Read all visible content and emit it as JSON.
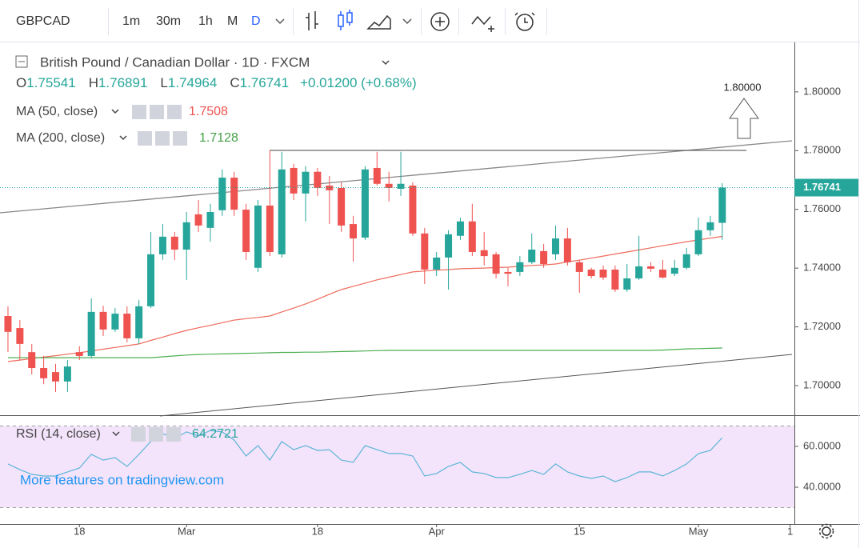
{
  "toolbar": {
    "symbol": "GBPCAD",
    "intervals": [
      "1m",
      "30m",
      "1h",
      "M",
      "D"
    ]
  },
  "legend": {
    "title": "British Pound / Canadian Dollar · 1D · FXCM",
    "ohlc_letters": [
      "O",
      "H",
      "L",
      "C"
    ],
    "change": "+0.01200 (+0.68%)"
  },
  "watermark": "More features on tradingview.com",
  "chart_data": {
    "type": "candlestick",
    "up_color": "#26a69a",
    "down_color": "#ef5350",
    "open": [
      1.7237,
      1.7196,
      1.7114,
      1.706,
      1.7046,
      1.7014,
      1.7114,
      1.7101,
      1.7251,
      1.7191,
      1.7245,
      1.7161,
      1.727,
      1.7447,
      1.7507,
      1.7463,
      1.7583,
      1.7537,
      1.7597,
      1.7708,
      1.7599,
      1.7401,
      1.7613,
      1.7447,
      1.7741,
      1.7654,
      1.7728,
      1.7681,
      1.7673,
      1.755,
      1.7504,
      1.7741,
      1.7687,
      1.767,
      1.7681,
      1.7518,
      1.7395,
      1.7436,
      1.751,
      1.7559,
      1.7461,
      1.7447,
      1.7387,
      1.7387,
      1.742,
      1.7458,
      1.7447,
      1.7501,
      1.742,
      1.7395,
      1.7395,
      1.7395,
      1.7327,
      1.7365,
      1.7406,
      1.7395,
      1.7381,
      1.7401,
      1.7447,
      1.7529,
      1.75541
    ],
    "high": [
      1.727,
      1.7223,
      1.7142,
      1.7101,
      1.7074,
      1.7087,
      1.7134,
      1.7297,
      1.7272,
      1.7264,
      1.727,
      1.7292,
      1.7523,
      1.755,
      1.7523,
      1.7591,
      1.7632,
      1.7619,
      1.7736,
      1.7728,
      1.7619,
      1.7632,
      1.7801,
      1.7796,
      1.7755,
      1.7747,
      1.7741,
      1.7714,
      1.7692,
      1.7578,
      1.7747,
      1.7796,
      1.7728,
      1.7796,
      1.7692,
      1.7537,
      1.7455,
      1.7529,
      1.7572,
      1.7619,
      1.7523,
      1.7455,
      1.7401,
      1.7441,
      1.7518,
      1.7482,
      1.7545,
      1.7537,
      1.7428,
      1.7401,
      1.7409,
      1.7409,
      1.7414,
      1.751,
      1.742,
      1.7428,
      1.7428,
      1.7469,
      1.7572,
      1.7578,
      1.76891
    ],
    "low": [
      1.7114,
      1.7087,
      1.7038,
      1.7005,
      1.6978,
      1.6978,
      1.7087,
      1.7093,
      1.7169,
      1.7183,
      1.7147,
      1.7142,
      1.7264,
      1.7428,
      1.7428,
      1.736,
      1.7523,
      1.749,
      1.7578,
      1.7578,
      1.7428,
      1.7387,
      1.7441,
      1.7436,
      1.7632,
      1.7559,
      1.7646,
      1.755,
      1.7523,
      1.7422,
      1.7496,
      1.7681,
      1.7627,
      1.7646,
      1.751,
      1.7346,
      1.7373,
      1.7327,
      1.7496,
      1.7441,
      1.7409,
      1.7365,
      1.7338,
      1.7373,
      1.7414,
      1.7401,
      1.7428,
      1.7409,
      1.7316,
      1.7365,
      1.736,
      1.7319,
      1.7319,
      1.736,
      1.7387,
      1.7365,
      1.7373,
      1.7395,
      1.7441,
      1.751,
      1.74964
    ],
    "close": [
      1.7183,
      1.7142,
      1.706,
      1.7025,
      1.7014,
      1.7065,
      1.7101,
      1.7251,
      1.7191,
      1.7245,
      1.7161,
      1.727,
      1.7447,
      1.7507,
      1.7463,
      1.7556,
      1.7545,
      1.7591,
      1.7708,
      1.7599,
      1.7455,
      1.7613,
      1.7455,
      1.7736,
      1.7654,
      1.7728,
      1.7673,
      1.7665,
      1.7545,
      1.7501,
      1.7736,
      1.7687,
      1.7673,
      1.7687,
      1.7518,
      1.7395,
      1.7436,
      1.7515,
      1.7559,
      1.7455,
      1.7441,
      1.7381,
      1.7381,
      1.742,
      1.7463,
      1.7414,
      1.7501,
      1.742,
      1.7387,
      1.7373,
      1.7368,
      1.7327,
      1.7365,
      1.7406,
      1.7398,
      1.7368,
      1.7401,
      1.7447,
      1.7529,
      1.7556,
      1.76741
    ],
    "indicators": [
      {
        "name": "MA (50, close)",
        "color": "#ef6b5b",
        "values": [
          1.7082,
          1.7087,
          1.7092,
          1.7097,
          1.7102,
          1.7107,
          1.7112,
          1.7118,
          1.7124,
          1.713,
          1.7136,
          1.7142,
          1.7154,
          1.7165,
          1.7177,
          1.7188,
          1.7197,
          1.7205,
          1.7214,
          1.7223,
          1.7228,
          1.7232,
          1.7237,
          1.7251,
          1.7264,
          1.7278,
          1.7294,
          1.7311,
          1.7327,
          1.7338,
          1.7349,
          1.736,
          1.7369,
          1.7378,
          1.7387,
          1.739,
          1.7393,
          1.7395,
          1.7398,
          1.7399,
          1.74,
          1.7402,
          1.7403,
          1.7406,
          1.7409,
          1.7411,
          1.7414,
          1.7421,
          1.7427,
          1.7434,
          1.7441,
          1.7448,
          1.7455,
          1.7462,
          1.7469,
          1.7476,
          1.7483,
          1.749,
          1.7496,
          1.7502,
          1.7508
        ]
      },
      {
        "name": "MA (200, close)",
        "color": "#4caf50",
        "values": [
          1.7095,
          1.7095,
          1.7095,
          1.7095,
          1.7095,
          1.7095,
          1.7095,
          1.7095,
          1.7095,
          1.7095,
          1.7095,
          1.7095,
          1.7095,
          1.7098,
          1.7101,
          1.7104,
          1.7106,
          1.7107,
          1.7108,
          1.7109,
          1.711,
          1.7111,
          1.7112,
          1.7113,
          1.7113,
          1.7114,
          1.7114,
          1.7115,
          1.7116,
          1.7117,
          1.7118,
          1.7119,
          1.712,
          1.712,
          1.712,
          1.712,
          1.712,
          1.712,
          1.712,
          1.712,
          1.712,
          1.712,
          1.712,
          1.712,
          1.712,
          1.712,
          1.712,
          1.712,
          1.712,
          1.712,
          1.712,
          1.712,
          1.712,
          1.712,
          1.712,
          1.7121,
          1.7123,
          1.7125,
          1.7126,
          1.7127,
          1.7128
        ]
      }
    ],
    "ylim": [
      1.6902,
      1.8163
    ],
    "yticks": [
      {
        "value": 1.8,
        "label": "1.80000"
      },
      {
        "value": 1.78,
        "label": "1.78000"
      },
      {
        "value": 1.76,
        "label": "1.76000"
      },
      {
        "value": 1.74,
        "label": "1.74000"
      },
      {
        "value": 1.72,
        "label": "1.72000"
      },
      {
        "value": 1.7,
        "label": "1.70000"
      }
    ],
    "xlim": [
      -0.67,
      66.06
    ],
    "xticks": [
      {
        "value": 6,
        "label": "18"
      },
      {
        "value": 15,
        "label": "Mar"
      },
      {
        "value": 26,
        "label": "18"
      },
      {
        "value": 36,
        "label": "Apr"
      },
      {
        "value": 48,
        "label": "15"
      },
      {
        "value": 58,
        "label": "May"
      },
      {
        "value": 65.7,
        "label": "1"
      }
    ],
    "annotation": "1.80000",
    "rsi": {
      "name": "RSI (14, close)",
      "color": "#5db5d8",
      "band_color": "#f3e4fb",
      "values": [
        51.4,
        48.6,
        46.3,
        45.5,
        45.5,
        47.5,
        49.4,
        56.1,
        53.3,
        54.5,
        50.2,
        56.1,
        62.4,
        66.3,
        63.9,
        67.1,
        65.1,
        67.8,
        67.1,
        63.1,
        55.3,
        60.4,
        53.3,
        62.4,
        58.4,
        60.4,
        58.0,
        58.4,
        53.3,
        52.2,
        60.4,
        58.4,
        56.5,
        56.5,
        55.3,
        45.5,
        46.7,
        50.2,
        52.2,
        47.5,
        46.7,
        44.7,
        44.7,
        46.3,
        48.2,
        46.3,
        51.4,
        47.5,
        45.5,
        44.3,
        45.5,
        42.7,
        44.7,
        47.5,
        47.5,
        45.5,
        48.2,
        51.4,
        56.5,
        58.0,
        64.2721
      ],
      "ylim": [
        21.96,
        74.9
      ],
      "yticks": [
        {
          "value": 60,
          "label": "60.0000"
        },
        {
          "value": 40,
          "label": "40.0000"
        }
      ],
      "band": [
        30,
        70
      ]
    }
  }
}
